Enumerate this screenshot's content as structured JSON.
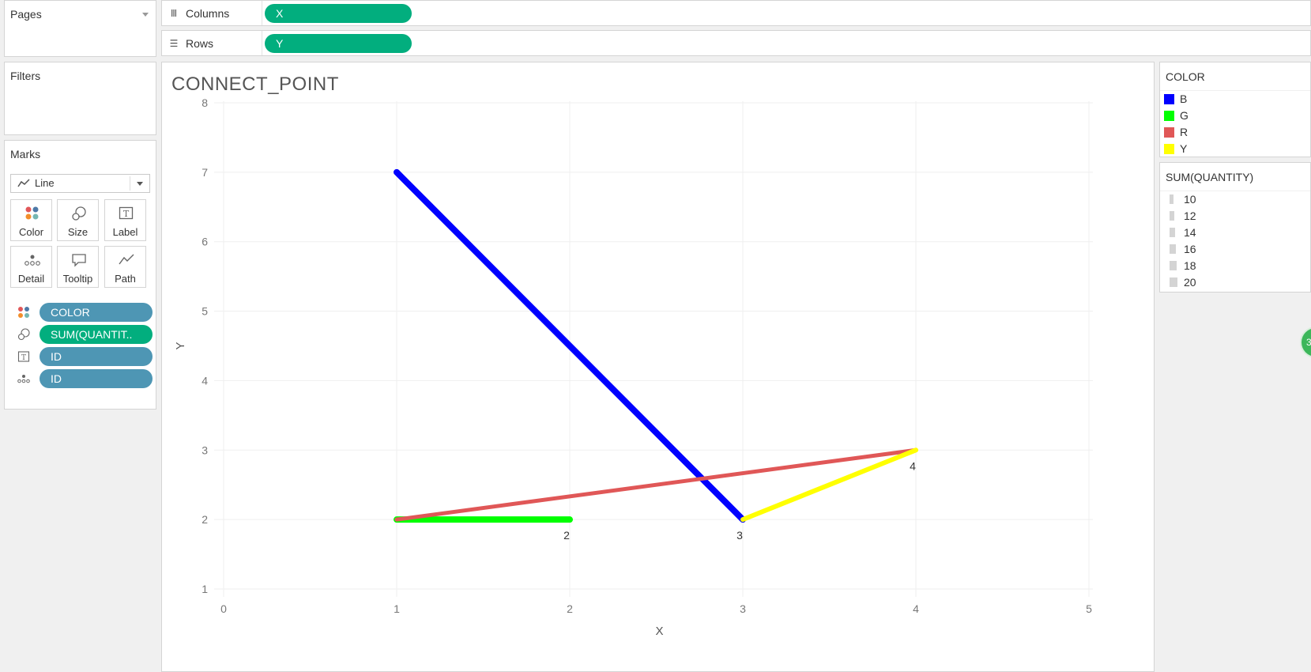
{
  "pages": {
    "title": "Pages"
  },
  "shelves": {
    "columns": {
      "label": "Columns",
      "pill": "X"
    },
    "rows": {
      "label": "Rows",
      "pill": "Y"
    }
  },
  "filters": {
    "title": "Filters"
  },
  "marks": {
    "title": "Marks",
    "mark_type": "Line",
    "buttons": {
      "color": "Color",
      "size": "Size",
      "label": "Label",
      "detail": "Detail",
      "tooltip": "Tooltip",
      "path": "Path"
    },
    "fields": [
      {
        "label": "COLOR",
        "icon": "color-icon",
        "pill": "blue"
      },
      {
        "label": "SUM(QUANTIT..",
        "icon": "size-icon",
        "pill": "green"
      },
      {
        "label": "ID",
        "icon": "label-icon",
        "pill": "blue"
      },
      {
        "label": "ID",
        "icon": "detail-icon",
        "pill": "blue"
      }
    ]
  },
  "legend_color": {
    "title": "COLOR",
    "items": [
      {
        "label": "B",
        "color": "#0000ff"
      },
      {
        "label": "G",
        "color": "#00ff00"
      },
      {
        "label": "R",
        "color": "#e05757"
      },
      {
        "label": "Y",
        "color": "#ffff00"
      }
    ]
  },
  "legend_size": {
    "title": "SUM(QUANTITY)",
    "items": [
      "10",
      "12",
      "14",
      "16",
      "18",
      "20"
    ]
  },
  "badge": {
    "text": "3"
  },
  "chart_data": {
    "type": "line",
    "title": "CONNECT_POINT",
    "xlabel": "X",
    "ylabel": "Y",
    "xlim": [
      0,
      5
    ],
    "ylim": [
      1,
      8
    ],
    "x_ticks": [
      "0",
      "1",
      "2",
      "3",
      "4",
      "5"
    ],
    "y_ticks": [
      "1",
      "2",
      "3",
      "4",
      "5",
      "6",
      "7",
      "8"
    ],
    "grid": true,
    "series": [
      {
        "name": "B",
        "color": "#0000ff",
        "stroke": 8,
        "points": [
          [
            1,
            7
          ],
          [
            3,
            2
          ]
        ]
      },
      {
        "name": "G",
        "color": "#00ff00",
        "stroke": 8,
        "points": [
          [
            1,
            2
          ],
          [
            2,
            2
          ]
        ]
      },
      {
        "name": "R",
        "color": "#e05757",
        "stroke": 5,
        "points": [
          [
            1,
            2
          ],
          [
            4,
            3
          ]
        ]
      },
      {
        "name": "Y",
        "color": "#ffff00",
        "stroke": 6,
        "points": [
          [
            3,
            2
          ],
          [
            4,
            3
          ]
        ]
      }
    ],
    "point_labels": [
      {
        "text": "2",
        "x": 2,
        "y": 2
      },
      {
        "text": "3",
        "x": 3,
        "y": 2
      },
      {
        "text": "4",
        "x": 4,
        "y": 3
      }
    ]
  }
}
